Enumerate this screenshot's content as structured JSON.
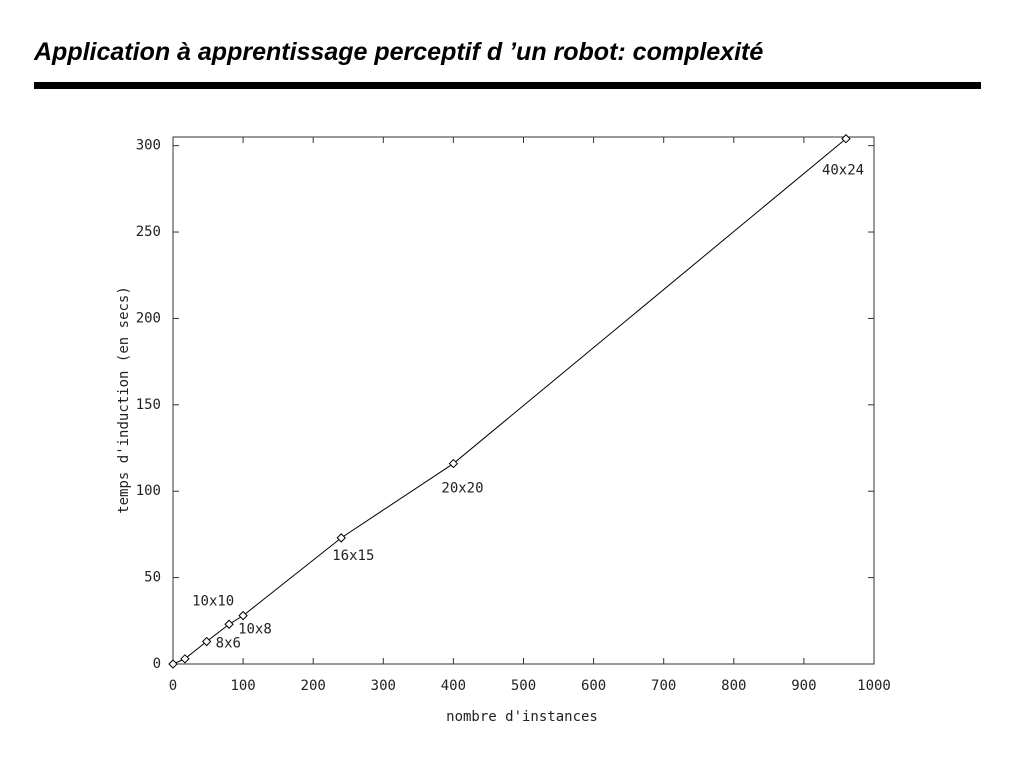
{
  "slide_title": "Application à apprentissage perceptif d ’un robot: complexité",
  "chart_data": {
    "type": "line",
    "xlabel": "nombre d'instances",
    "ylabel": "temps d'induction (en secs)",
    "x": [
      0,
      17,
      48,
      80,
      100,
      240,
      400,
      960
    ],
    "series": [
      {
        "color": "#000000",
        "values": [
          0,
          3,
          13,
          23,
          28,
          73,
          116,
          304
        ]
      }
    ],
    "point_labels": [
      null,
      null,
      "8x6",
      "10x8",
      "10x10",
      "16x15",
      "20x20",
      "40x24"
    ],
    "xlim": [
      0,
      1000
    ],
    "xticks": [
      0,
      100,
      200,
      300,
      400,
      500,
      600,
      700,
      800,
      900,
      1000
    ],
    "ylim": [
      0,
      305
    ],
    "yticks": [
      0,
      50,
      100,
      150,
      200,
      250,
      300
    ],
    "marker": "diamond"
  }
}
